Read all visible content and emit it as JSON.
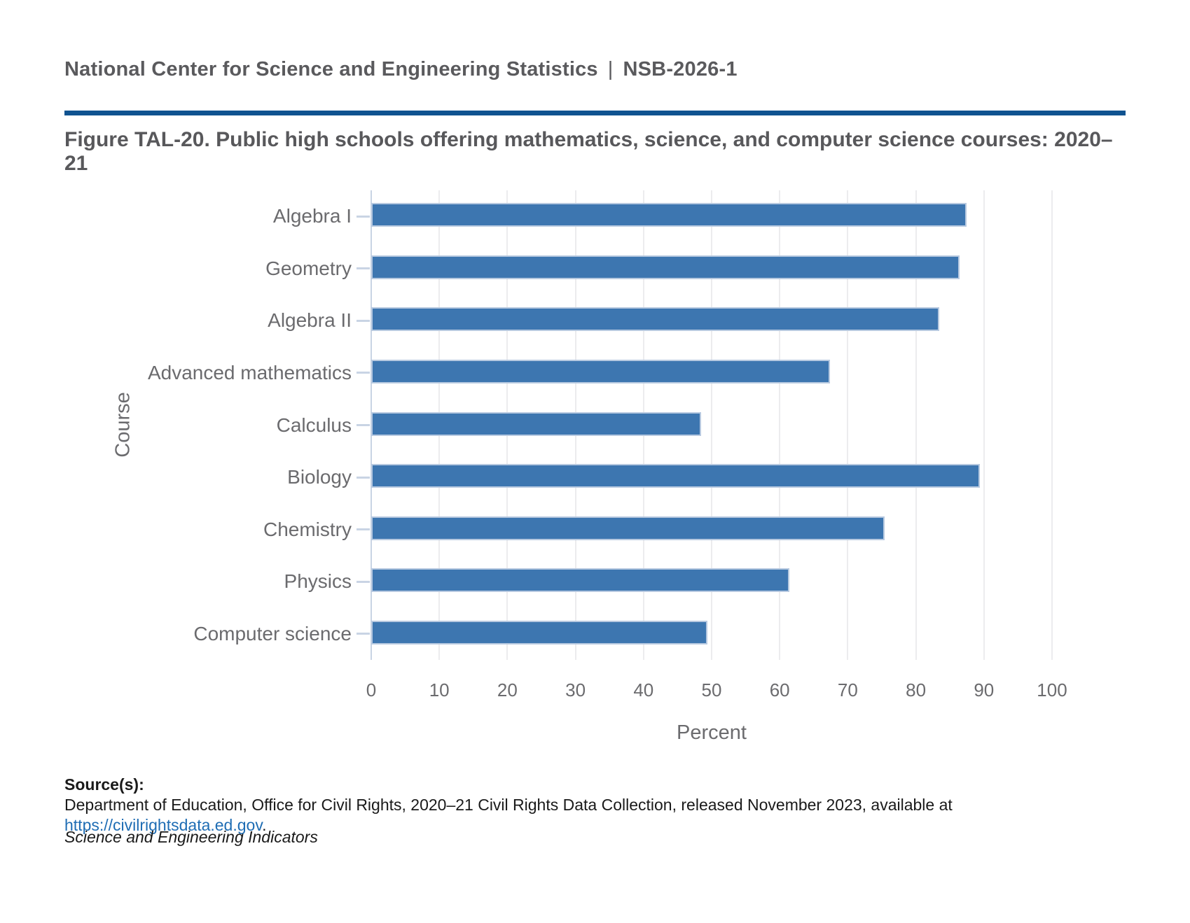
{
  "header": {
    "org": "National Center for Science and Engineering Statistics",
    "separator": "|",
    "report_id": "NSB-2026-1"
  },
  "figure": {
    "title": "Figure TAL-20. Public high schools offering mathematics, science, and computer science courses: 2020–21"
  },
  "chart_data": {
    "type": "bar",
    "orientation": "horizontal",
    "title": "Public high schools offering mathematics, science, and computer science courses: 2020-21",
    "categories": [
      "Algebra I",
      "Geometry",
      "Algebra II",
      "Advanced mathematics",
      "Calculus",
      "Biology",
      "Chemistry",
      "Physics",
      "Computer science"
    ],
    "values": [
      87,
      86,
      83,
      67,
      48,
      89,
      75,
      61,
      49
    ],
    "xlabel": "Percent",
    "ylabel": "Course",
    "xlim": [
      0,
      100
    ],
    "xticks": [
      0,
      10,
      20,
      30,
      40,
      50,
      60,
      70,
      80,
      90,
      100
    ],
    "grid": true,
    "legend": "none"
  },
  "source": {
    "label": "Source(s):",
    "text_before_link": "Department of Education, Office for Civil Rights, 2020–21 Civil Rights Data Collection, released November 2023, available at ",
    "link_text": "https://civilrightsdata.ed.gov",
    "text_after_link": ".",
    "footer_italic": "Science and Engineering Indicators"
  },
  "colors": {
    "accent_rule": "#0f5390",
    "bar": "#3d76b0",
    "bar_border": "#b7c9e0",
    "gridline": "#ececee",
    "axis_line": "#c9d4e4",
    "link": "#1f6db4"
  }
}
